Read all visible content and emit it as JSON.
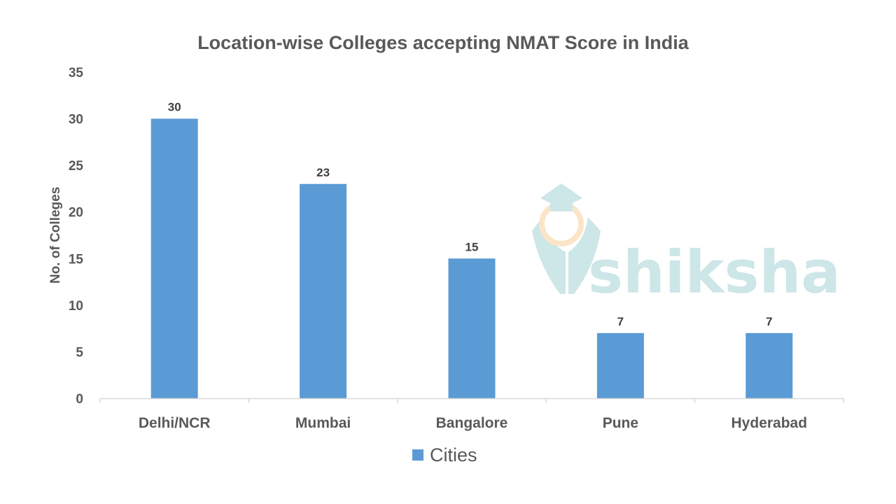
{
  "chart_data": {
    "type": "bar",
    "title": "Location-wise Colleges accepting NMAT Score in India",
    "xlabel": "",
    "ylabel": "No. of Colleges",
    "categories": [
      "Delhi/NCR",
      "Mumbai",
      "Bangalore",
      "Pune",
      "Hyderabad"
    ],
    "series": [
      {
        "name": "Cities",
        "values": [
          30,
          23,
          15,
          7,
          7
        ],
        "color": "#5B9BD5"
      }
    ],
    "ylim": [
      0,
      35
    ],
    "yticks": [
      0,
      5,
      10,
      15,
      20,
      25,
      30,
      35
    ],
    "grid": false,
    "data_labels": true,
    "legend": "bottom"
  },
  "watermark": {
    "text": "shiksha",
    "color": "#CDE6E8",
    "accent": "#FBE5C8"
  }
}
